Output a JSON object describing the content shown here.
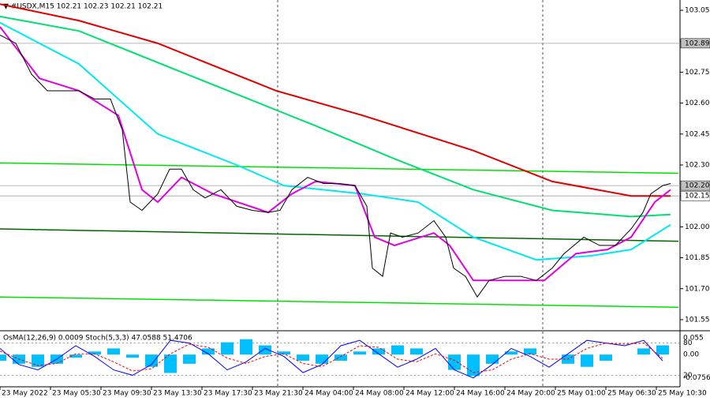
{
  "chart_data": [
    {
      "type": "line",
      "title": "▼ #USDX,M15  102.21 102.23 102.21 102.21",
      "xlim": [
        0,
        215.5
      ],
      "ylim": [
        101.5,
        103.1
      ],
      "yticks": [
        {
          "value": 103.05,
          "label": "103.05"
        },
        {
          "value": 102.9,
          "label": "102.90"
        },
        {
          "value": 102.75,
          "label": "102.75"
        },
        {
          "value": 102.6,
          "label": "102.60"
        },
        {
          "value": 102.45,
          "label": "102.45"
        },
        {
          "value": 102.3,
          "label": "102.30"
        },
        {
          "value": 102.15,
          "label": "102.15"
        },
        {
          "value": 102,
          "label": "102.00"
        },
        {
          "value": 101.85,
          "label": "101.85"
        },
        {
          "value": 101.7,
          "label": "101.70"
        },
        {
          "value": 101.55,
          "label": "101.55"
        }
      ],
      "xticks": [
        {
          "value": 0,
          "label": "23 May 2022"
        },
        {
          "value": 16,
          "label": "23 May 05:30"
        },
        {
          "value": 32,
          "label": "23 May 09:30"
        },
        {
          "value": 48,
          "label": "23 May 13:30"
        },
        {
          "value": 64,
          "label": "23 May 17:30"
        },
        {
          "value": 80,
          "label": "23 May 21:30"
        },
        {
          "value": 96,
          "label": "24 May 04:00"
        },
        {
          "value": 112,
          "label": "24 May 08:00"
        },
        {
          "value": 128,
          "label": "24 May 12:00"
        },
        {
          "value": 144,
          "label": "24 May 16:00"
        },
        {
          "value": 160,
          "label": "24 May 20:00"
        },
        {
          "value": 176,
          "label": "25 May 01:00"
        },
        {
          "value": 192,
          "label": "25 May 06:30"
        },
        {
          "value": 208,
          "label": "25 May 10:30"
        }
      ],
      "day_separators": [
        88,
        172
      ],
      "price_marks": [
        {
          "value": 102.89,
          "label": "102.89",
          "color": "#c0c0c0"
        },
        {
          "value": 102.2,
          "label": "102.20",
          "color": "#c0c0c0"
        },
        {
          "value": 102.15,
          "label": "102.15",
          "color": "#ffffff"
        }
      ],
      "hlines": [
        102.89,
        102.2,
        102.15
      ],
      "trendlines": [
        {
          "color": "#00e000",
          "x": [
            0,
            215
          ],
          "values": [
            102.31,
            102.26
          ]
        },
        {
          "color": "#006400",
          "x": [
            0,
            215
          ],
          "values": [
            101.99,
            101.93
          ]
        },
        {
          "color": "#00e000",
          "x": [
            0,
            215
          ],
          "values": [
            101.66,
            101.61
          ]
        }
      ],
      "series": [
        {
          "color": "#e00000",
          "x": [
            0,
            25,
            50,
            87.5,
            115,
            150,
            175,
            200,
            212.5
          ],
          "values": [
            103.08,
            103.0,
            102.89,
            102.66,
            102.54,
            102.37,
            102.22,
            102.15,
            102.15
          ]
        },
        {
          "color": "#00e070",
          "x": [
            0,
            25,
            62.5,
            100,
            125,
            150,
            175,
            200,
            212.5
          ],
          "values": [
            103.02,
            102.95,
            102.72,
            102.49,
            102.33,
            102.18,
            102.08,
            102.05,
            102.06
          ]
        },
        {
          "color": "#00e8f0",
          "x": [
            0,
            25,
            50,
            75,
            90,
            115,
            132.5,
            150,
            170,
            187.5,
            200,
            212.5
          ],
          "values": [
            102.99,
            102.79,
            102.45,
            102.3,
            102.2,
            102.16,
            102.12,
            101.95,
            101.84,
            101.86,
            101.89,
            102.01
          ]
        },
        {
          "color": "#e000e0",
          "x": [
            0,
            12.5,
            25,
            37.5,
            45,
            50,
            57.5,
            67.5,
            85,
            92.5,
            100,
            112.5,
            118.75,
            125,
            137.5,
            142.5,
            150,
            160,
            172.5,
            182.5,
            192.5,
            200,
            207.5,
            212.5
          ],
          "values": [
            102.97,
            102.72,
            102.66,
            102.54,
            102.18,
            102.12,
            102.24,
            102.16,
            102.07,
            102.16,
            102.22,
            102.2,
            101.95,
            101.91,
            101.97,
            101.91,
            101.74,
            101.74,
            101.74,
            101.87,
            101.89,
            101.95,
            102.12,
            102.18
          ]
        },
        {
          "color": "#000000",
          "x": [
            0,
            5,
            10,
            15,
            25,
            30,
            35,
            38.75,
            41.25,
            45,
            50,
            53.75,
            57.5,
            61.25,
            65,
            70,
            75,
            80,
            85,
            88.75,
            92.5,
            97.5,
            102.5,
            107.5,
            112.5,
            116.25,
            118,
            121.25,
            123.75,
            127.5,
            132.5,
            137.5,
            141.25,
            143.75,
            147.5,
            151.25,
            155,
            160,
            165,
            170,
            175,
            178.75,
            185,
            190,
            195,
            200,
            203.75,
            206.25,
            210,
            212.5
          ],
          "values": [
            102.93,
            102.89,
            102.74,
            102.66,
            102.66,
            102.62,
            102.62,
            102.47,
            102.12,
            102.08,
            102.16,
            102.28,
            102.28,
            102.18,
            102.14,
            102.18,
            102.1,
            102.08,
            102.07,
            102.08,
            102.18,
            102.24,
            102.21,
            102.21,
            102.2,
            102.1,
            101.8,
            101.76,
            101.97,
            101.95,
            101.97,
            102.03,
            101.95,
            101.8,
            101.76,
            101.66,
            101.74,
            101.76,
            101.76,
            101.74,
            101.8,
            101.87,
            101.95,
            101.91,
            101.91,
            101.99,
            102.07,
            102.16,
            102.2,
            102.21
          ]
        }
      ]
    },
    {
      "type": "bar",
      "title": "OsMA(12,26,9) 0.0009  Stoch(5,3,3) 47.0588 51.4706",
      "xlim": [
        0,
        215.5
      ],
      "ylim": [
        -0.1025,
        0.0725
      ],
      "y2lim": [
        0,
        100
      ],
      "yticks": [
        0.055,
        {
          "value": 0,
          "label": "0.00"
        },
        -0.0756
      ],
      "y2ticks": [
        80,
        20
      ],
      "x": [
        0,
        6,
        12,
        18,
        24,
        30,
        36,
        42,
        48,
        54,
        60,
        66,
        72,
        78,
        84,
        90,
        96,
        102,
        108,
        114,
        120,
        126,
        132,
        138,
        144,
        150,
        156,
        162,
        168,
        174,
        180,
        186,
        192,
        198,
        204,
        210
      ],
      "values": [
        -0.02,
        -0.03,
        -0.04,
        -0.03,
        -0.01,
        0.01,
        0.02,
        -0.01,
        -0.04,
        -0.06,
        -0.03,
        0.02,
        0.04,
        0.05,
        0.03,
        0.01,
        -0.02,
        -0.03,
        -0.02,
        0.01,
        0.02,
        0.03,
        0.02,
        0.0,
        -0.05,
        -0.07,
        -0.03,
        0.01,
        0.02,
        0.0,
        -0.03,
        -0.04,
        -0.02,
        0.0,
        0.02,
        0.03
      ],
      "color": "#00bfff",
      "series": [
        {
          "color": "#0000ff",
          "axis": "y2",
          "values": [
            70,
            40,
            30,
            50,
            75,
            55,
            30,
            20,
            40,
            85,
            80,
            60,
            30,
            45,
            70,
            55,
            25,
            40,
            75,
            85,
            60,
            35,
            50,
            70,
            30,
            15,
            40,
            70,
            55,
            35,
            60,
            85,
            80,
            75,
            85,
            47.0588
          ]
        },
        {
          "color": "#ff0000",
          "axis": "y2",
          "values": [
            65,
            50,
            38,
            42,
            60,
            60,
            45,
            28,
            32,
            60,
            78,
            72,
            52,
            42,
            55,
            60,
            42,
            36,
            55,
            75,
            72,
            50,
            45,
            60,
            48,
            25,
            30,
            50,
            60,
            50,
            50,
            70,
            80,
            78,
            80,
            51.4706
          ]
        }
      ]
    }
  ]
}
